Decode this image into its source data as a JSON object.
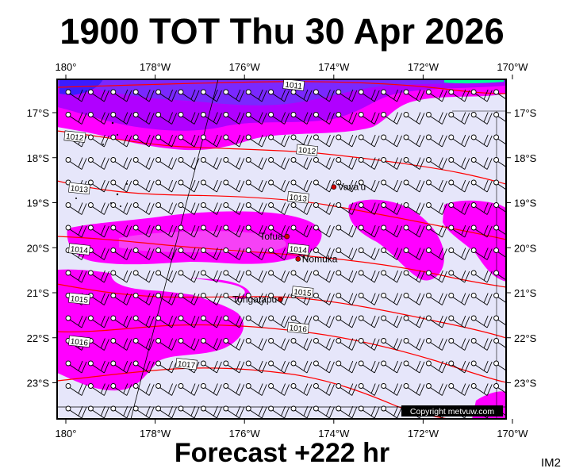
{
  "header": {
    "title": "1900 TOT Thu 30 Apr 2026"
  },
  "footer": {
    "forecast": "Forecast +222 hr",
    "code": "IM2",
    "copyright": "Copyright metvuw.com"
  },
  "map": {
    "lon_ticks": [
      "180°",
      "178°W",
      "176°W",
      "174°W",
      "172°W",
      "170°W"
    ],
    "lat_ticks": [
      "17°S",
      "18°S",
      "19°S",
      "20°S",
      "21°S",
      "22°S",
      "23°S"
    ],
    "colors": {
      "background": "#e6e6fa",
      "precip": "#ff00ff",
      "precip_light": "#ee82ee",
      "heavy": "#8000ff",
      "deep": "#3a1cff",
      "isobar": "#ff0000"
    },
    "places": [
      {
        "name": "Vava'u",
        "lon": -174.0,
        "lat": -18.65
      },
      {
        "name": "Tofua",
        "lon": -175.05,
        "lat": -19.75
      },
      {
        "name": "Nomuka",
        "lon": -174.8,
        "lat": -20.25
      },
      {
        "name": "Tongatapu",
        "lon": -175.2,
        "lat": -21.15
      }
    ],
    "isobar_labels": [
      {
        "text": "1011",
        "lon": -174.9,
        "lat": -16.4
      },
      {
        "text": "1012",
        "lon": -179.8,
        "lat": -17.55
      },
      {
        "text": "1012",
        "lon": -174.6,
        "lat": -17.85
      },
      {
        "text": "1013",
        "lon": -179.7,
        "lat": -18.7
      },
      {
        "text": "1013",
        "lon": -174.8,
        "lat": -18.9
      },
      {
        "text": "1014",
        "lon": -179.7,
        "lat": -20.05
      },
      {
        "text": "1014",
        "lon": -174.8,
        "lat": -20.05
      },
      {
        "text": "1015",
        "lon": -179.7,
        "lat": -21.15
      },
      {
        "text": "1015",
        "lon": -174.7,
        "lat": -21.0
      },
      {
        "text": "1016",
        "lon": -179.7,
        "lat": -22.1
      },
      {
        "text": "1016",
        "lon": -174.8,
        "lat": -21.8
      },
      {
        "text": "1017",
        "lon": -177.3,
        "lat": -22.6
      }
    ]
  }
}
